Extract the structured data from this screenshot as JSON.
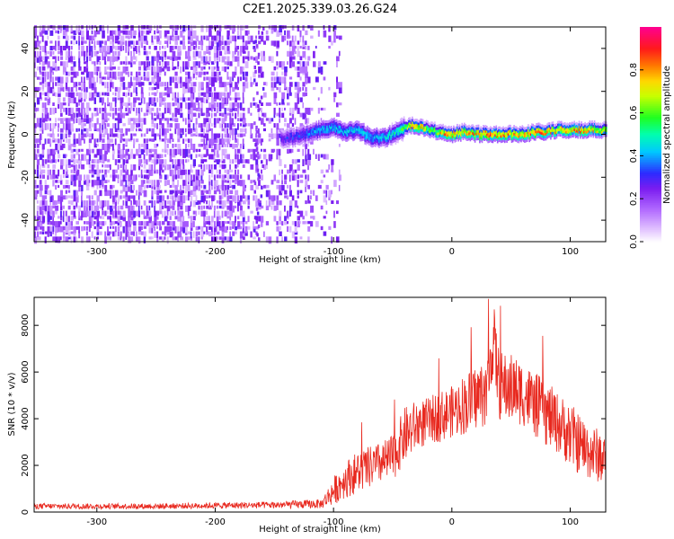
{
  "figure_title": "C2E1.2025.339.03.26.G24",
  "chart_data": [
    {
      "type": "heatmap",
      "panel": "spectrogram",
      "title": "C2E1.2025.339.03.26.G24",
      "xlabel": "Height of straight line (km)",
      "ylabel": "Frequency (Hz)",
      "xlim": [
        -353,
        130
      ],
      "ylim": [
        -50,
        50
      ],
      "xticks": [
        -300,
        -200,
        -100,
        0,
        100
      ],
      "yticks": [
        -40,
        -20,
        0,
        20,
        40
      ],
      "xtick_labels": [
        "-300",
        "-200",
        "-100",
        "0",
        "100"
      ],
      "ytick_labels": [
        "-40",
        "-20",
        "0",
        "20",
        "40"
      ],
      "noise_region": {
        "x_from": -353,
        "x_to": -105,
        "freq_from": -50,
        "freq_to": 50,
        "amplitude": "0.05-0.25"
      },
      "signal_track": {
        "x": [
          -145,
          -130,
          -120,
          -110,
          -100,
          -90,
          -80,
          -70,
          -60,
          -50,
          -45,
          -40,
          -35,
          -30,
          -25,
          -20,
          -10,
          0,
          10,
          20,
          30,
          40,
          50,
          60,
          70,
          80,
          90,
          100,
          110,
          120,
          130
        ],
        "freq_hz": [
          -2,
          -1,
          1,
          2,
          3,
          1,
          2,
          -1,
          -2,
          0,
          2,
          3,
          4,
          3,
          3,
          2,
          1,
          0,
          1,
          0,
          0,
          0,
          0,
          0,
          1,
          1,
          2,
          2,
          2,
          2,
          2
        ],
        "amplitude": [
          0.3,
          0.35,
          0.4,
          0.45,
          0.45,
          0.45,
          0.45,
          0.45,
          0.45,
          0.5,
          0.55,
          0.6,
          0.8,
          0.85,
          0.85,
          0.6,
          0.8,
          0.85,
          0.85,
          0.85,
          0.9,
          0.9,
          0.85,
          0.85,
          0.9,
          0.85,
          0.8,
          0.85,
          0.85,
          0.8,
          0.7
        ]
      }
    },
    {
      "type": "line",
      "panel": "snr",
      "xlabel": "Height of straight line (km)",
      "ylabel": "SNR (10 * v/v)",
      "xlim": [
        -353,
        130
      ],
      "ylim": [
        0,
        9200
      ],
      "xticks": [
        -300,
        -200,
        -100,
        0,
        100
      ],
      "yticks": [
        0,
        2000,
        4000,
        6000,
        8000
      ],
      "xtick_labels": [
        "-300",
        "-200",
        "-100",
        "0",
        "100"
      ],
      "ytick_labels": [
        "0",
        "2000",
        "4000",
        "6000",
        "8000"
      ],
      "series": [
        {
          "name": "SNR",
          "color": "#e8281e",
          "x": [
            -353,
            -300,
            -250,
            -200,
            -150,
            -110,
            -100,
            -90,
            -80,
            -70,
            -60,
            -50,
            -40,
            -30,
            -20,
            -10,
            0,
            10,
            20,
            30,
            35,
            40,
            50,
            60,
            70,
            80,
            90,
            100,
            110,
            120,
            130
          ],
          "y": [
            250,
            250,
            250,
            280,
            300,
            350,
            900,
            1400,
            1700,
            1900,
            2100,
            2300,
            3300,
            3700,
            3900,
            4100,
            4300,
            4600,
            4900,
            5200,
            7500,
            5400,
            5300,
            5100,
            4600,
            4200,
            3800,
            3300,
            2800,
            2500,
            2300
          ],
          "noise_amplitude": [
            120,
            120,
            120,
            130,
            150,
            200,
            600,
            800,
            900,
            900,
            900,
            1000,
            1200,
            1100,
            1000,
            1100,
            1100,
            1300,
            1400,
            1500,
            1600,
            1500,
            1500,
            1400,
            1400,
            1400,
            1300,
            1400,
            1300,
            1200,
            1100
          ]
        }
      ]
    },
    {
      "type": "heatmap",
      "panel": "colorbar",
      "ylabel": "Normalized spectral amplitude",
      "ylim": [
        0,
        1
      ],
      "yticks": [
        0.0,
        0.2,
        0.4,
        0.6,
        0.8
      ],
      "ytick_labels": [
        "0.0",
        "0.2",
        "0.4",
        "0.6",
        "0.8"
      ],
      "colormap_stops": [
        {
          "value": 0.0,
          "color": "#ffffff"
        },
        {
          "value": 0.05,
          "color": "#e6ccff"
        },
        {
          "value": 0.15,
          "color": "#b26bff"
        },
        {
          "value": 0.25,
          "color": "#7a1cf0"
        },
        {
          "value": 0.32,
          "color": "#2d2bff"
        },
        {
          "value": 0.42,
          "color": "#00c8ff"
        },
        {
          "value": 0.5,
          "color": "#00ffb0"
        },
        {
          "value": 0.58,
          "color": "#20ff20"
        },
        {
          "value": 0.68,
          "color": "#c8ff00"
        },
        {
          "value": 0.75,
          "color": "#ffd700"
        },
        {
          "value": 0.82,
          "color": "#ff7a00"
        },
        {
          "value": 0.9,
          "color": "#ff1a1a"
        },
        {
          "value": 1.0,
          "color": "#ff0090"
        }
      ]
    }
  ]
}
